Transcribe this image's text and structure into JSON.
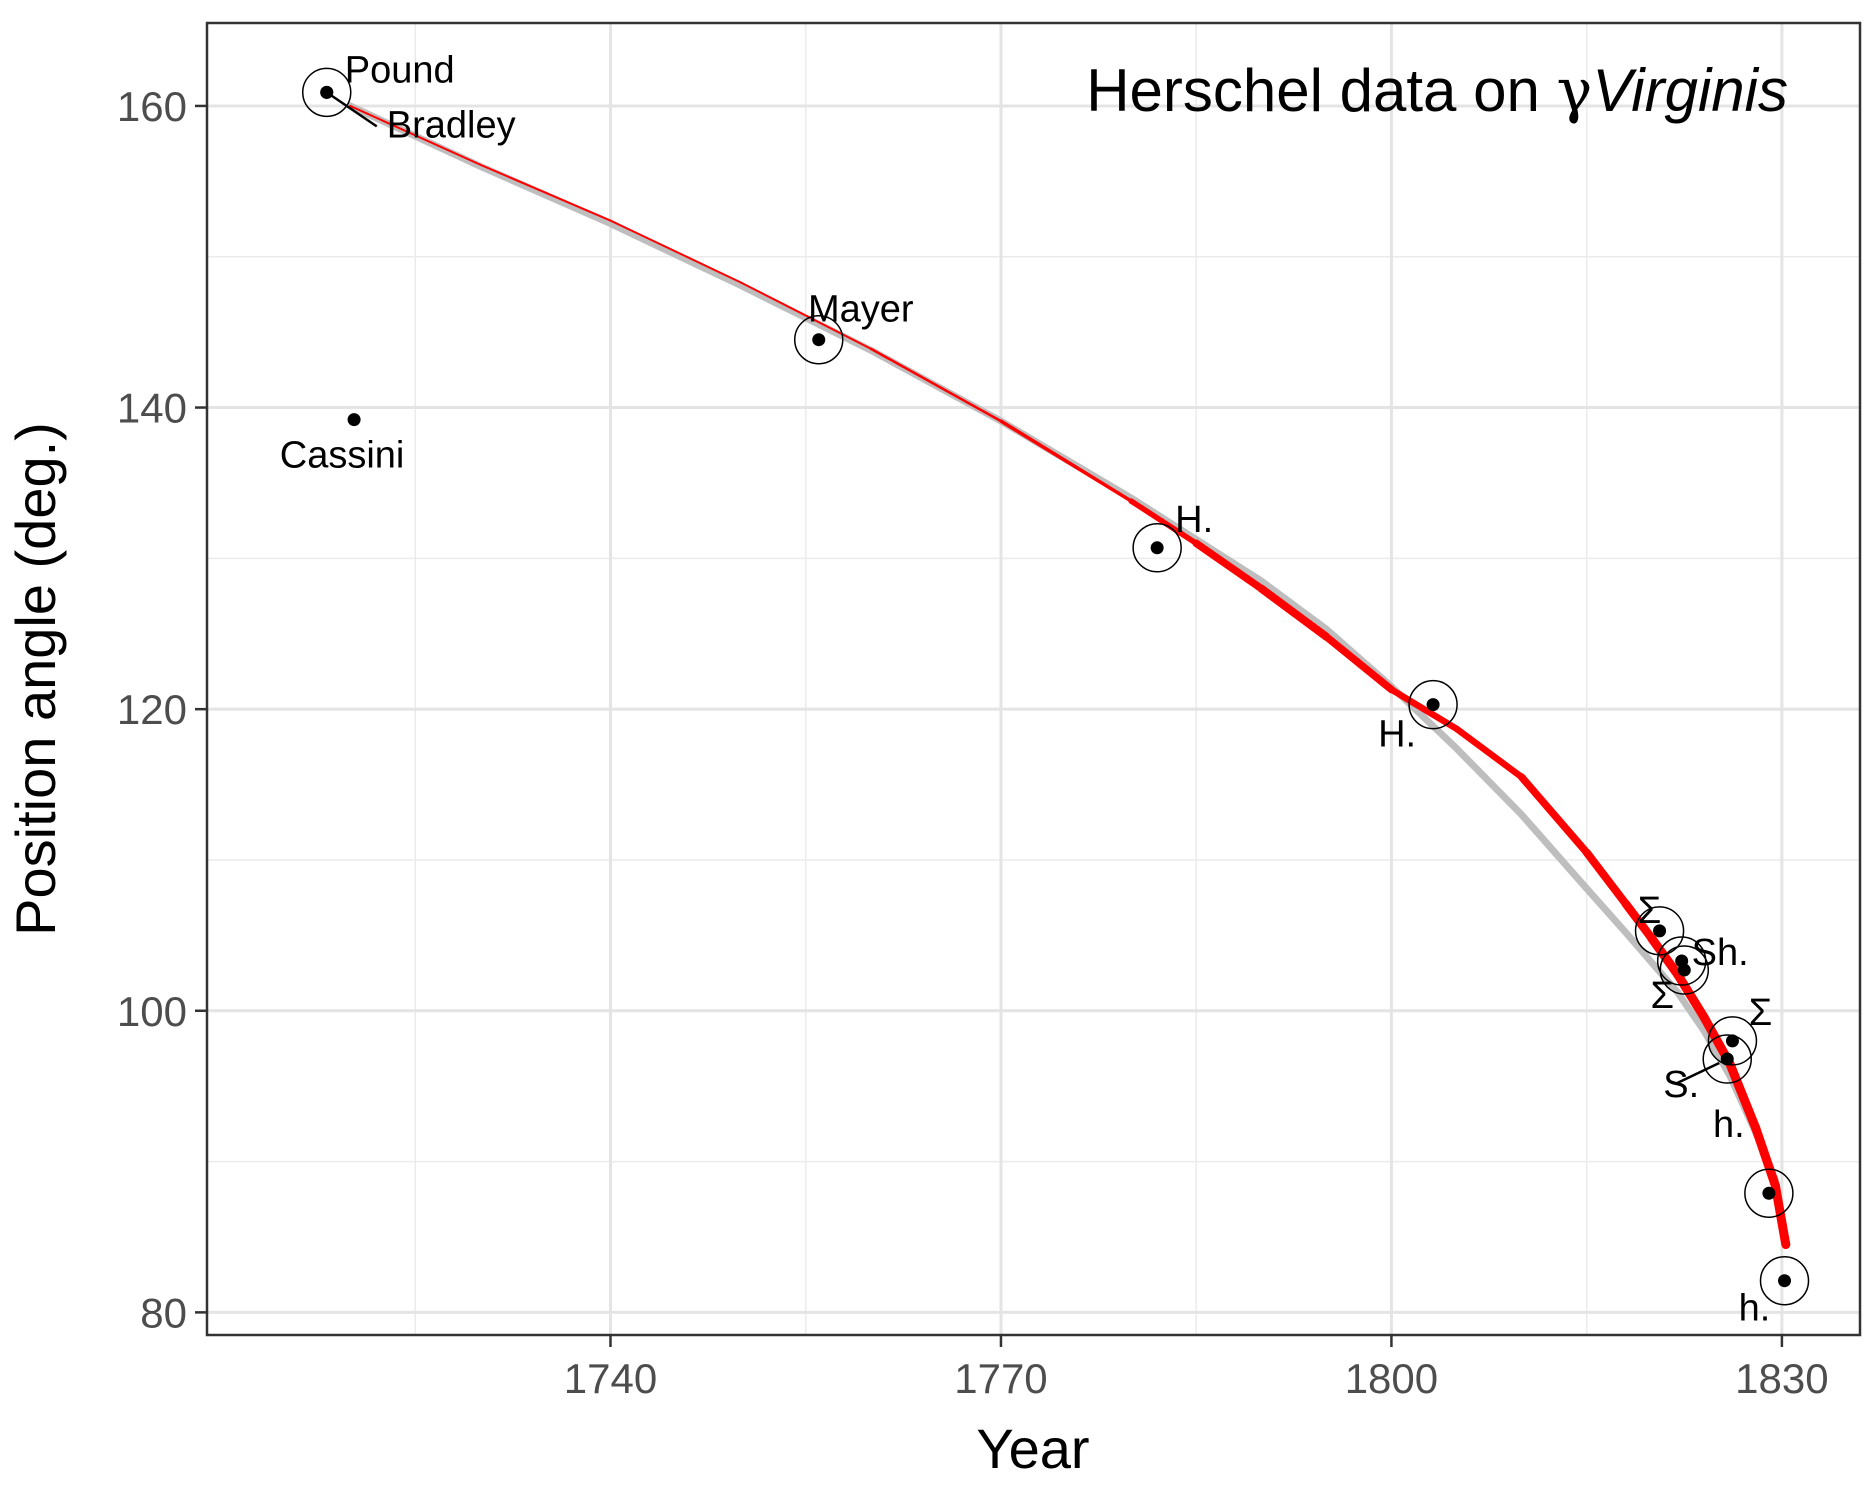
{
  "chart_data": {
    "type": "scatter",
    "title": {
      "prefix": "Herschel data on ",
      "greek": "γ",
      "italic": "Virginis"
    },
    "xlabel": "Year",
    "ylabel": "Position angle (deg.)",
    "xlim": [
      1709,
      1836
    ],
    "ylim": [
      78.5,
      165.5
    ],
    "xticks": [
      1740,
      1770,
      1800,
      1830
    ],
    "xminor": [
      1725,
      1755,
      1785,
      1815
    ],
    "yticks": [
      80,
      100,
      120,
      140,
      160
    ],
    "yminor": [
      90,
      110,
      130,
      150
    ],
    "grid": true,
    "points": [
      {
        "label": "Pound",
        "x": 1718.2,
        "y": 160.9,
        "circled": true
      },
      {
        "label": "Bradley",
        "x": 1718.2,
        "y": 160.9,
        "circled": true
      },
      {
        "label": "Cassini",
        "x": 1720.3,
        "y": 139.2,
        "circled": false
      },
      {
        "label": "Mayer",
        "x": 1756.0,
        "y": 144.5,
        "circled": true
      },
      {
        "label": "H.",
        "x": 1782.0,
        "y": 130.7,
        "circled": true
      },
      {
        "label": "H.",
        "x": 1803.2,
        "y": 120.3,
        "circled": true
      },
      {
        "label": "Σ",
        "x": 1820.6,
        "y": 105.3,
        "circled": true
      },
      {
        "label": "Sh.",
        "x": 1822.3,
        "y": 103.3,
        "circled": true
      },
      {
        "label": "Σ",
        "x": 1822.5,
        "y": 102.7,
        "circled": true
      },
      {
        "label": "Σ",
        "x": 1826.2,
        "y": 98.0,
        "circled": true
      },
      {
        "label": "S.",
        "x": 1825.8,
        "y": 96.8,
        "circled": true
      },
      {
        "label": "h.",
        "x": 1829.0,
        "y": 87.9,
        "circled": true
      },
      {
        "label": "h.",
        "x": 1830.2,
        "y": 82.1,
        "circled": true
      }
    ],
    "series": [
      {
        "kind": "fitted curve (gray)",
        "color": "#bebebe",
        "x": [
          1720,
          1730,
          1740,
          1750,
          1760,
          1770,
          1780,
          1790,
          1795,
          1800,
          1805,
          1810,
          1815,
          1818,
          1820,
          1822,
          1824,
          1826,
          1828,
          1829.5
        ],
        "y": [
          160.0,
          156.0,
          152.2,
          148.1,
          143.8,
          139.1,
          134.0,
          128.5,
          125.3,
          121.5,
          117.4,
          113.0,
          108.1,
          105.2,
          103.2,
          101.2,
          98.7,
          95.7,
          91.9,
          88.8
        ]
      },
      {
        "kind": "interpolated curve (red)",
        "color": "#ff0000",
        "x": [
          1720,
          1730,
          1740,
          1750,
          1760,
          1770,
          1780,
          1785,
          1790,
          1795,
          1800,
          1805,
          1810,
          1815,
          1818,
          1820,
          1822,
          1824,
          1826,
          1828,
          1829.5,
          1830.3
        ],
        "y": [
          160.0,
          156.1,
          152.4,
          148.3,
          143.9,
          139.1,
          133.8,
          131.0,
          128.0,
          124.8,
          121.3,
          118.7,
          115.5,
          110.5,
          107.1,
          104.8,
          102.4,
          99.6,
          96.5,
          92.2,
          88.4,
          84.5
        ],
        "width": [
          2,
          2,
          2,
          2,
          2,
          3,
          4,
          7,
          8,
          8,
          7,
          6,
          7,
          8,
          8,
          9,
          9,
          9,
          9,
          9,
          9,
          9
        ]
      }
    ]
  }
}
